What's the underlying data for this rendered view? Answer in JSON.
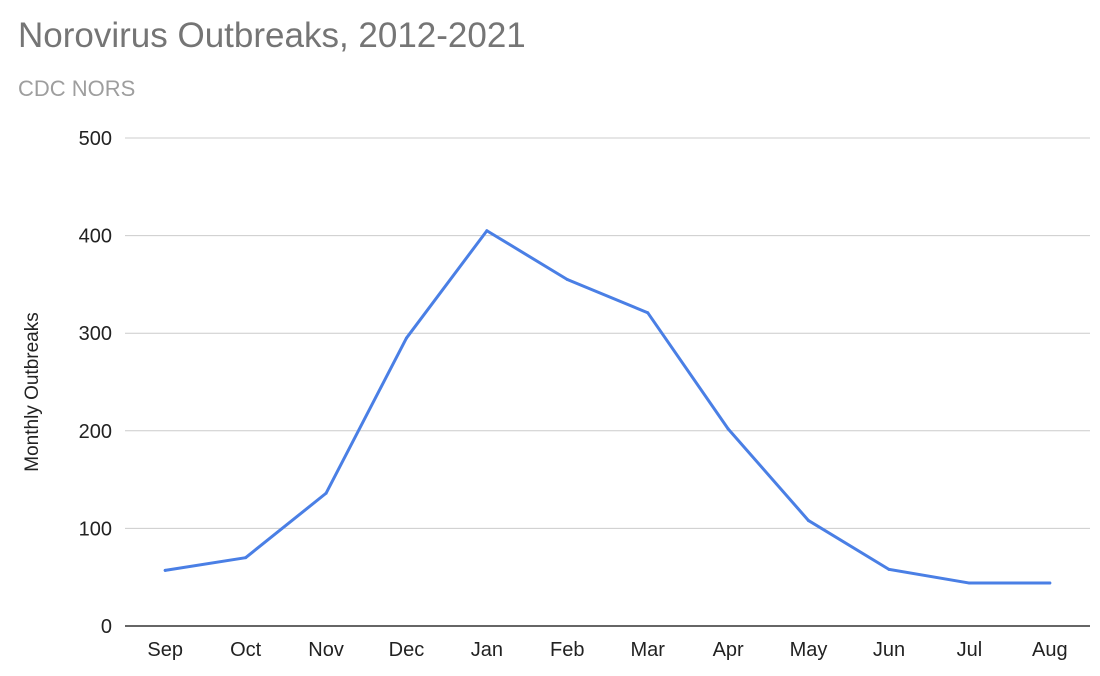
{
  "chart_data": {
    "type": "line",
    "title": "Norovirus Outbreaks, 2012-2021",
    "subtitle": "CDC NORS",
    "xlabel": "",
    "ylabel": "Monthly Outbreaks",
    "categories": [
      "Sep",
      "Oct",
      "Nov",
      "Dec",
      "Jan",
      "Feb",
      "Mar",
      "Apr",
      "May",
      "Jun",
      "Jul",
      "Aug"
    ],
    "series": [
      {
        "values": [
          57,
          70,
          136,
          295,
          405,
          355,
          321,
          202,
          108,
          58,
          44,
          44
        ],
        "color": "#4a7fe5"
      }
    ],
    "ylim": [
      0,
      500
    ],
    "yticks": [
      0,
      100,
      200,
      300,
      400,
      500
    ],
    "grid": true,
    "legend": "none"
  }
}
